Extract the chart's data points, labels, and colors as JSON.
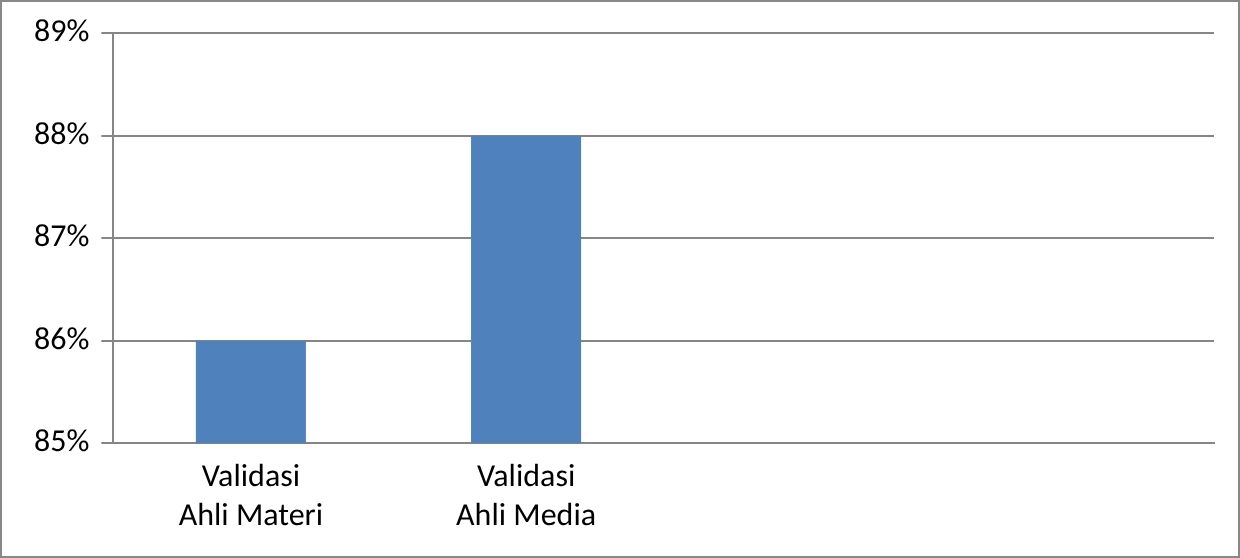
{
  "chart_data": {
    "type": "bar",
    "categories": [
      "Validasi Ahli Materi",
      "Validasi Ahli Media",
      null,
      null
    ],
    "values": [
      86,
      88,
      null,
      null
    ],
    "color": "#4f81bd",
    "ylim": [
      85,
      89
    ],
    "yticks": [
      {
        "value": 85,
        "label": "85%"
      },
      {
        "value": 86,
        "label": "86%"
      },
      {
        "value": 87,
        "label": "87%"
      },
      {
        "value": 88,
        "label": "88%"
      },
      {
        "value": 89,
        "label": "89%"
      }
    ],
    "grid": "y",
    "legend": false
  }
}
